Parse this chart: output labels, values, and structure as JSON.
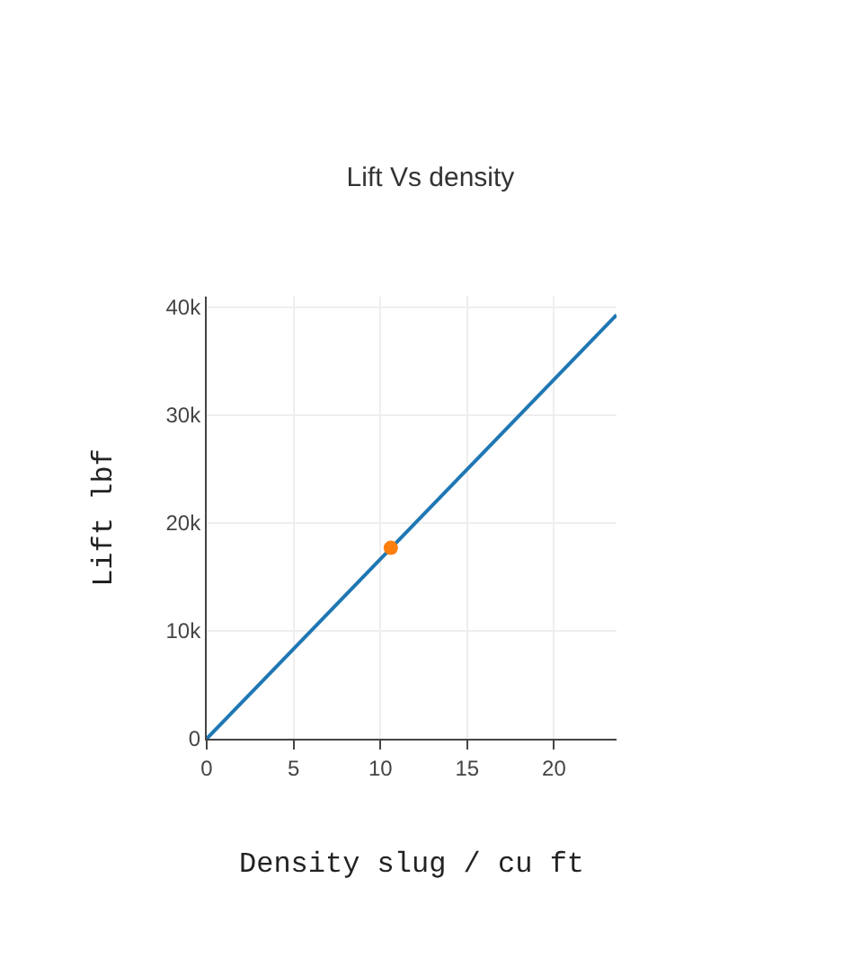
{
  "chart_data": {
    "type": "line",
    "title": "Lift Vs density",
    "xlabel": "Density slug / cu ft",
    "ylabel": "Lift lbf",
    "series": [
      {
        "color": "#1f77b4",
        "x": [
          0,
          23.6
        ],
        "values": [
          0,
          39300
        ]
      },
      {
        "type": "scatter",
        "color": "#ff7f0e",
        "x": [
          10.6
        ],
        "values": [
          17700
        ]
      }
    ],
    "xlim": [
      0,
      23.6
    ],
    "ylim": [
      0,
      41000
    ],
    "xticks": [
      0,
      5,
      10,
      15,
      20
    ],
    "yticks": [
      0,
      {
        "value": 10000,
        "label": "10k"
      },
      {
        "value": 20000,
        "label": "20k"
      },
      {
        "value": 30000,
        "label": "30k"
      },
      {
        "value": 40000,
        "label": "40k"
      }
    ],
    "grid": true,
    "legend": false
  }
}
